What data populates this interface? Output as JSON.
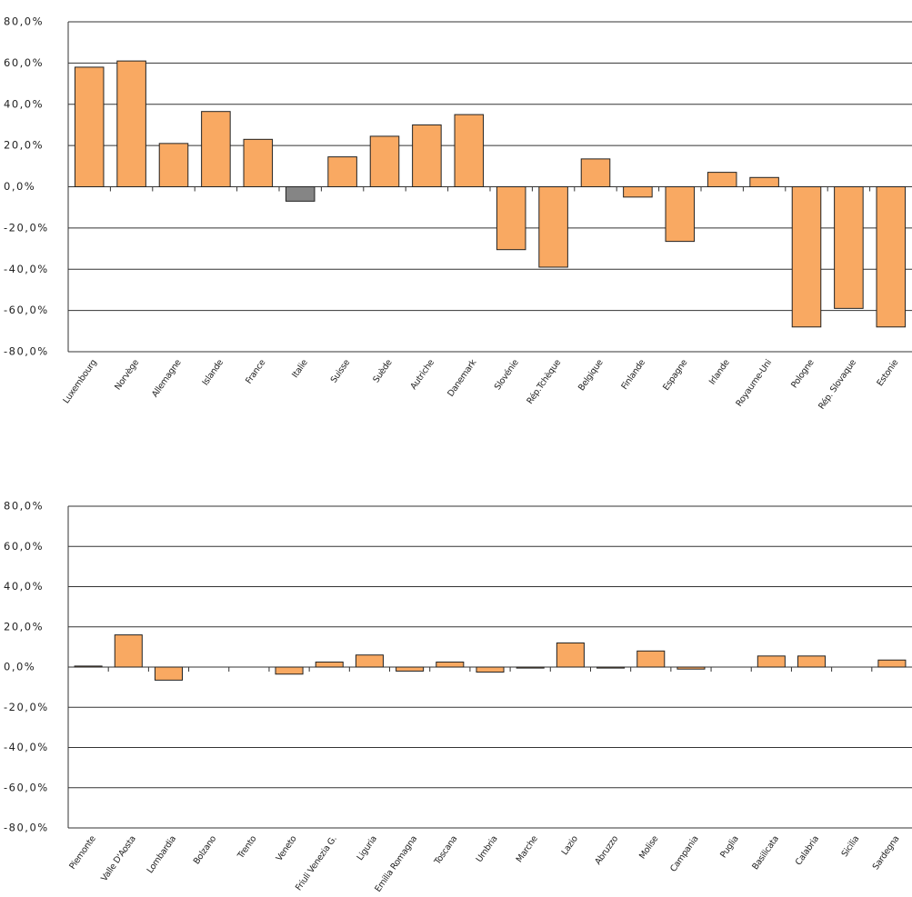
{
  "chart_data": [
    {
      "type": "bar",
      "categories": [
        "Luxembourg",
        "Norvège",
        "Allemagne",
        "Islande",
        "France",
        "Italie",
        "Suisse",
        "Suède",
        "Autriche",
        "Danemark",
        "Slovénie",
        "Rép.Tchèque",
        "Belgique",
        "Finlande",
        "Espagne",
        "Irlande",
        "Royaume-Uni",
        "Pologne",
        "Rép. Slovaque",
        "Estonie"
      ],
      "values": [
        58,
        61,
        21,
        36.5,
        23,
        -7,
        14.5,
        24.5,
        30,
        35,
        -30.5,
        -39,
        13.5,
        -5,
        -26.5,
        7,
        4.5,
        -68,
        -59,
        -68
      ],
      "colors": [
        "#f9a962",
        "#f9a962",
        "#f9a962",
        "#f9a962",
        "#f9a962",
        "#858585",
        "#f9a962",
        "#f9a962",
        "#f9a962",
        "#f9a962",
        "#f9a962",
        "#f9a962",
        "#f9a962",
        "#f9a962",
        "#f9a962",
        "#f9a962",
        "#f9a962",
        "#f9a962",
        "#f9a962",
        "#f9a962"
      ],
      "ylim": [
        -80,
        80
      ],
      "yticks": [
        {
          "value": -80,
          "label": "-80,0%"
        },
        {
          "value": -60,
          "label": "-60,0%"
        },
        {
          "value": -40,
          "label": "-40,0%"
        },
        {
          "value": -20,
          "label": "-20,0%"
        },
        {
          "value": 0,
          "label": "0,0%"
        },
        {
          "value": 20,
          "label": "20,0%"
        },
        {
          "value": 40,
          "label": "40,0%"
        },
        {
          "value": 60,
          "label": "60,0%"
        },
        {
          "value": 80,
          "label": "80,0%"
        }
      ],
      "grid": true
    },
    {
      "type": "bar",
      "categories": [
        "Piemonte",
        "Valle D'Aosta",
        "Lombardia",
        "Bolzano",
        "Trento",
        "Veneto",
        "Friuli Venezia G.",
        "Liguria",
        "Emilia Romagna",
        "Toscana",
        "Umbria",
        "Marche",
        "Lazio",
        "Abruzzo",
        "Molise",
        "Campania",
        "Puglia",
        "Basilicata",
        "Calabria",
        "Sicilia",
        "Sardegna"
      ],
      "values": [
        0.5,
        16,
        -6.5,
        0,
        0,
        -3.5,
        2.5,
        6,
        -2,
        2.5,
        -2.5,
        -0.5,
        12,
        -0.5,
        8,
        -1,
        0,
        5.5,
        5.5,
        0,
        3.5
      ],
      "color": "#f9a962",
      "ylim": [
        -80,
        80
      ],
      "yticks": [
        {
          "value": -80,
          "label": "-80,0%"
        },
        {
          "value": -60,
          "label": "-60,0%"
        },
        {
          "value": -40,
          "label": "-40,0%"
        },
        {
          "value": -20,
          "label": "-20,0%"
        },
        {
          "value": 0,
          "label": "0,0%"
        },
        {
          "value": 20,
          "label": "20,0%"
        },
        {
          "value": 40,
          "label": "40,0%"
        },
        {
          "value": 60,
          "label": "60,0%"
        },
        {
          "value": 80,
          "label": "80,0%"
        }
      ],
      "grid": true
    }
  ]
}
